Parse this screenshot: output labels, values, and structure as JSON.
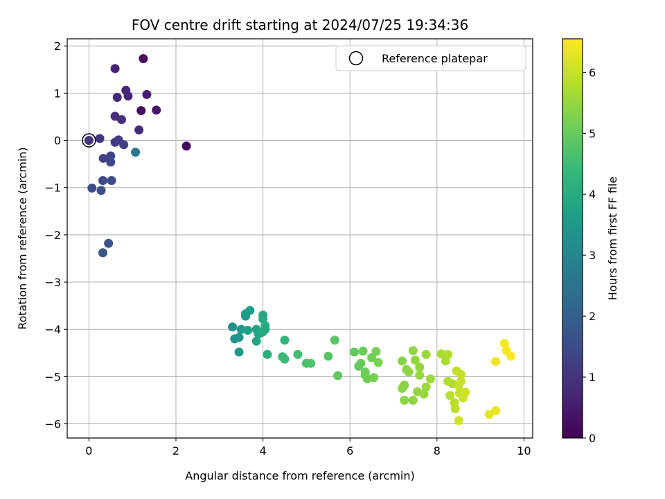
{
  "chart_data": {
    "type": "scatter",
    "title": "FOV centre drift starting at 2024/07/25 19:34:36",
    "xlabel": "Angular distance from reference (arcmin)",
    "ylabel": "Rotation from reference (arcmin)",
    "xlim": [
      -0.5,
      10.2
    ],
    "ylim": [
      -6.3,
      2.15
    ],
    "xticks": [
      0,
      2,
      4,
      6,
      8,
      10
    ],
    "yticks": [
      2,
      1,
      0,
      -1,
      -2,
      -3,
      -4,
      -5,
      -6
    ],
    "xtick_labels": [
      "0",
      "2",
      "4",
      "6",
      "8",
      "10"
    ],
    "ytick_labels": [
      "2",
      "1",
      "0",
      "−1",
      "−2",
      "−3",
      "−4",
      "−5",
      "−6"
    ],
    "grid": true,
    "legend": {
      "placement": "top-right",
      "entries": [
        "Reference platepar"
      ]
    },
    "reference_point": {
      "x": 0,
      "y": 0
    },
    "colorbar": {
      "label": "Hours from first FF file",
      "colormap": "viridis",
      "range": [
        0,
        6.55
      ],
      "ticks": [
        0,
        1,
        2,
        3,
        4,
        5,
        6
      ],
      "tick_labels": [
        "0",
        "1",
        "2",
        "3",
        "4",
        "5",
        "6"
      ]
    },
    "points": [
      [
        1.25,
        1.73,
        0.2
      ],
      [
        1.2,
        0.63,
        0.25
      ],
      [
        2.24,
        -0.12,
        0.15
      ],
      [
        1.55,
        0.64,
        0.4
      ],
      [
        0.6,
        1.52,
        0.6
      ],
      [
        0.85,
        1.06,
        0.65
      ],
      [
        0.9,
        0.94,
        0.7
      ],
      [
        1.33,
        0.97,
        0.55
      ],
      [
        0.65,
        0.91,
        0.75
      ],
      [
        1.15,
        0.22,
        0.8
      ],
      [
        0.6,
        0.51,
        0.85
      ],
      [
        0.75,
        0.44,
        0.9
      ],
      [
        0.0,
        0.0,
        1.0
      ],
      [
        0.25,
        0.04,
        1.05
      ],
      [
        0.6,
        -0.04,
        1.1
      ],
      [
        0.68,
        0.01,
        1.15
      ],
      [
        0.8,
        -0.09,
        1.2
      ],
      [
        0.33,
        -0.38,
        1.3
      ],
      [
        0.5,
        -0.33,
        1.35
      ],
      [
        0.5,
        -0.46,
        1.4
      ],
      [
        0.32,
        -0.85,
        1.45
      ],
      [
        0.52,
        -0.85,
        1.5
      ],
      [
        0.07,
        -1.01,
        1.55
      ],
      [
        0.28,
        -1.06,
        1.6
      ],
      [
        0.45,
        -2.18,
        1.7
      ],
      [
        0.32,
        -2.38,
        1.75
      ],
      [
        1.07,
        -0.25,
        2.65
      ],
      [
        3.3,
        -3.95,
        3.3
      ],
      [
        3.35,
        -4.2,
        3.35
      ],
      [
        3.45,
        -4.17,
        3.4
      ],
      [
        3.5,
        -4.0,
        3.45
      ],
      [
        3.45,
        -4.48,
        3.5
      ],
      [
        3.6,
        -3.67,
        3.55
      ],
      [
        3.6,
        -3.72,
        3.6
      ],
      [
        3.7,
        -3.6,
        3.65
      ],
      [
        3.65,
        -4.02,
        3.7
      ],
      [
        3.85,
        -4.0,
        3.75
      ],
      [
        3.85,
        -4.25,
        3.8
      ],
      [
        3.9,
        -4.1,
        3.85
      ],
      [
        4.0,
        -3.7,
        3.9
      ],
      [
        4.0,
        -3.78,
        3.95
      ],
      [
        4.05,
        -3.92,
        4.0
      ],
      [
        4.0,
        -4.05,
        4.05
      ],
      [
        4.1,
        -4.53,
        4.1
      ],
      [
        4.05,
        -4.0,
        3.9
      ],
      [
        3.98,
        -4.06,
        4.0
      ],
      [
        4.5,
        -4.23,
        4.3
      ],
      [
        4.45,
        -4.58,
        4.4
      ],
      [
        4.5,
        -4.63,
        4.45
      ],
      [
        4.8,
        -4.53,
        4.55
      ],
      [
        5.0,
        -4.72,
        4.65
      ],
      [
        5.1,
        -4.72,
        4.7
      ],
      [
        5.5,
        -4.57,
        4.8
      ],
      [
        5.65,
        -4.23,
        4.85
      ],
      [
        5.72,
        -4.98,
        4.9
      ],
      [
        6.1,
        -4.48,
        4.95
      ],
      [
        6.2,
        -4.78,
        5.0
      ],
      [
        6.25,
        -4.72,
        5.02
      ],
      [
        6.3,
        -4.46,
        5.05
      ],
      [
        6.35,
        -4.9,
        5.08
      ],
      [
        6.35,
        -4.97,
        5.1
      ],
      [
        6.4,
        -5.05,
        5.12
      ],
      [
        6.5,
        -4.6,
        5.15
      ],
      [
        6.55,
        -5.02,
        5.18
      ],
      [
        6.6,
        -4.47,
        5.2
      ],
      [
        6.65,
        -4.7,
        5.22
      ],
      [
        7.2,
        -4.67,
        5.35
      ],
      [
        7.3,
        -4.85,
        5.4
      ],
      [
        7.35,
        -4.9,
        5.42
      ],
      [
        7.45,
        -4.45,
        5.45
      ],
      [
        7.5,
        -4.65,
        5.48
      ],
      [
        7.6,
        -4.8,
        5.5
      ],
      [
        7.6,
        -4.97,
        5.52
      ],
      [
        7.75,
        -4.53,
        5.55
      ],
      [
        7.85,
        -5.05,
        5.6
      ],
      [
        7.2,
        -5.25,
        5.38
      ],
      [
        7.25,
        -5.18,
        5.4
      ],
      [
        7.25,
        -5.5,
        5.42
      ],
      [
        7.45,
        -5.5,
        5.45
      ],
      [
        7.55,
        -5.32,
        5.5
      ],
      [
        7.7,
        -5.37,
        5.55
      ],
      [
        7.75,
        -5.22,
        5.58
      ],
      [
        8.1,
        -4.52,
        5.7
      ],
      [
        8.2,
        -4.67,
        5.75
      ],
      [
        8.25,
        -4.53,
        5.78
      ],
      [
        8.25,
        -5.1,
        5.8
      ],
      [
        8.35,
        -5.15,
        5.82
      ],
      [
        8.3,
        -5.4,
        5.85
      ],
      [
        8.4,
        -5.55,
        5.88
      ],
      [
        8.42,
        -5.68,
        5.9
      ],
      [
        8.45,
        -4.88,
        5.92
      ],
      [
        8.5,
        -5.2,
        5.95
      ],
      [
        8.52,
        -5.35,
        5.97
      ],
      [
        8.55,
        -4.95,
        6.0
      ],
      [
        8.55,
        -5.1,
        6.02
      ],
      [
        8.6,
        -5.45,
        6.05
      ],
      [
        8.65,
        -5.33,
        6.08
      ],
      [
        8.5,
        -5.93,
        6.1
      ],
      [
        9.2,
        -5.8,
        6.3
      ],
      [
        9.35,
        -5.72,
        6.35
      ],
      [
        9.35,
        -4.68,
        6.4
      ],
      [
        9.55,
        -4.3,
        6.45
      ],
      [
        9.6,
        -4.45,
        6.5
      ],
      [
        9.7,
        -4.57,
        6.53
      ]
    ]
  }
}
